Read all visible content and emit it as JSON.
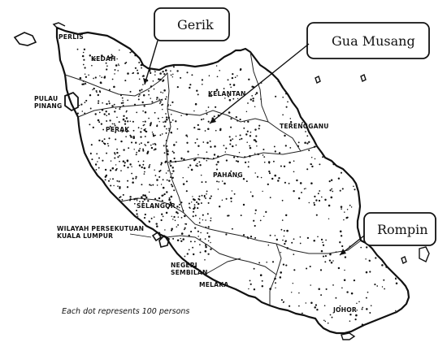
{
  "map": {
    "state_labels": {
      "perlis": "PERLIS",
      "kedah": "KEDAH",
      "pulau_pinang_1": "PULAU",
      "pulau_pinang_2": "PINANG",
      "perak": "PERAK",
      "kelantan": "KELANTAN",
      "terengganu": "TERENGGANU",
      "pahang": "PAHANG",
      "selangor": "SELANGOR",
      "wp_kl_1": "WILAYAH PERSEKUTUAN",
      "wp_kl_2": "KUALA LUMPUR",
      "negeri_sembilan_1": "NEGERI",
      "negeri_sembilan_2": "SEMBILAN",
      "melaka": "MELAKA",
      "johor": "JOHOR"
    },
    "callouts": {
      "gerik": "Gerik",
      "gua_musang": "Gua Musang",
      "rompin": "Rompin"
    },
    "legend": "Each dot represents 100 persons",
    "colors": {
      "ink": "#111111",
      "paper": "#ffffff"
    }
  }
}
